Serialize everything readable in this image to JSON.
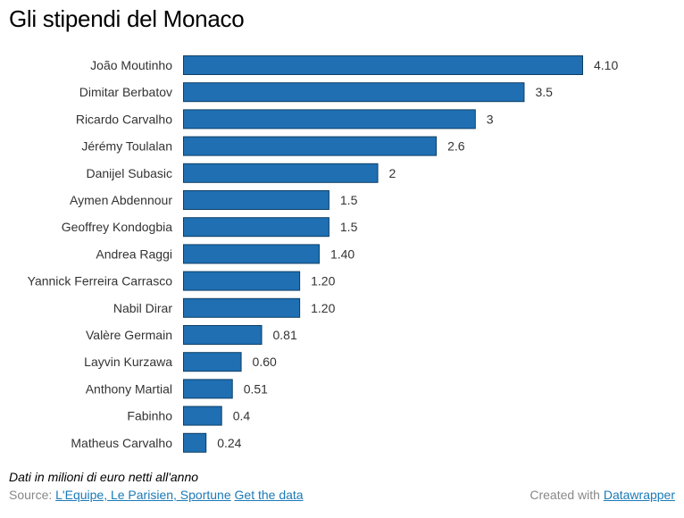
{
  "header": {
    "title": "Gli stipendi del Monaco"
  },
  "chart_data": {
    "type": "bar",
    "orientation": "horizontal",
    "categories": [
      "João Moutinho",
      "Dimitar Berbatov",
      "Ricardo Carvalho",
      "Jérémy Toulalan",
      "Danijel Subasic",
      "Aymen Abdennour",
      "Geoffrey Kondogbia",
      "Andrea Raggi",
      "Yannick Ferreira Carrasco",
      "Nabil Dirar",
      "Valère Germain",
      "Layvin Kurzawa",
      "Anthony Martial",
      "Fabinho",
      "Matheus Carvalho"
    ],
    "values": [
      4.1,
      3.5,
      3,
      2.6,
      2,
      1.5,
      1.5,
      1.4,
      1.2,
      1.2,
      0.81,
      0.6,
      0.51,
      0.4,
      0.24
    ],
    "value_labels": [
      "4.10",
      "3.5",
      "3",
      "2.6",
      "2",
      "1.5",
      "1.5",
      "1.40",
      "1.20",
      "1.20",
      "0.81",
      "0.60",
      "0.51",
      "0.4",
      "0.24"
    ],
    "xlim": [
      0,
      4.1
    ],
    "grid": false,
    "bar_color": "#1f6fb2",
    "bar_stroke": "#0d3f66"
  },
  "notes": "Dati in milioni di euro netti all'anno",
  "footer": {
    "source_prefix": "Source:",
    "source_link": "L'Equipe, Le Parisien, Sportune",
    "get_data": "Get the data",
    "created_prefix": "Created with",
    "created_link": "Datawrapper"
  }
}
